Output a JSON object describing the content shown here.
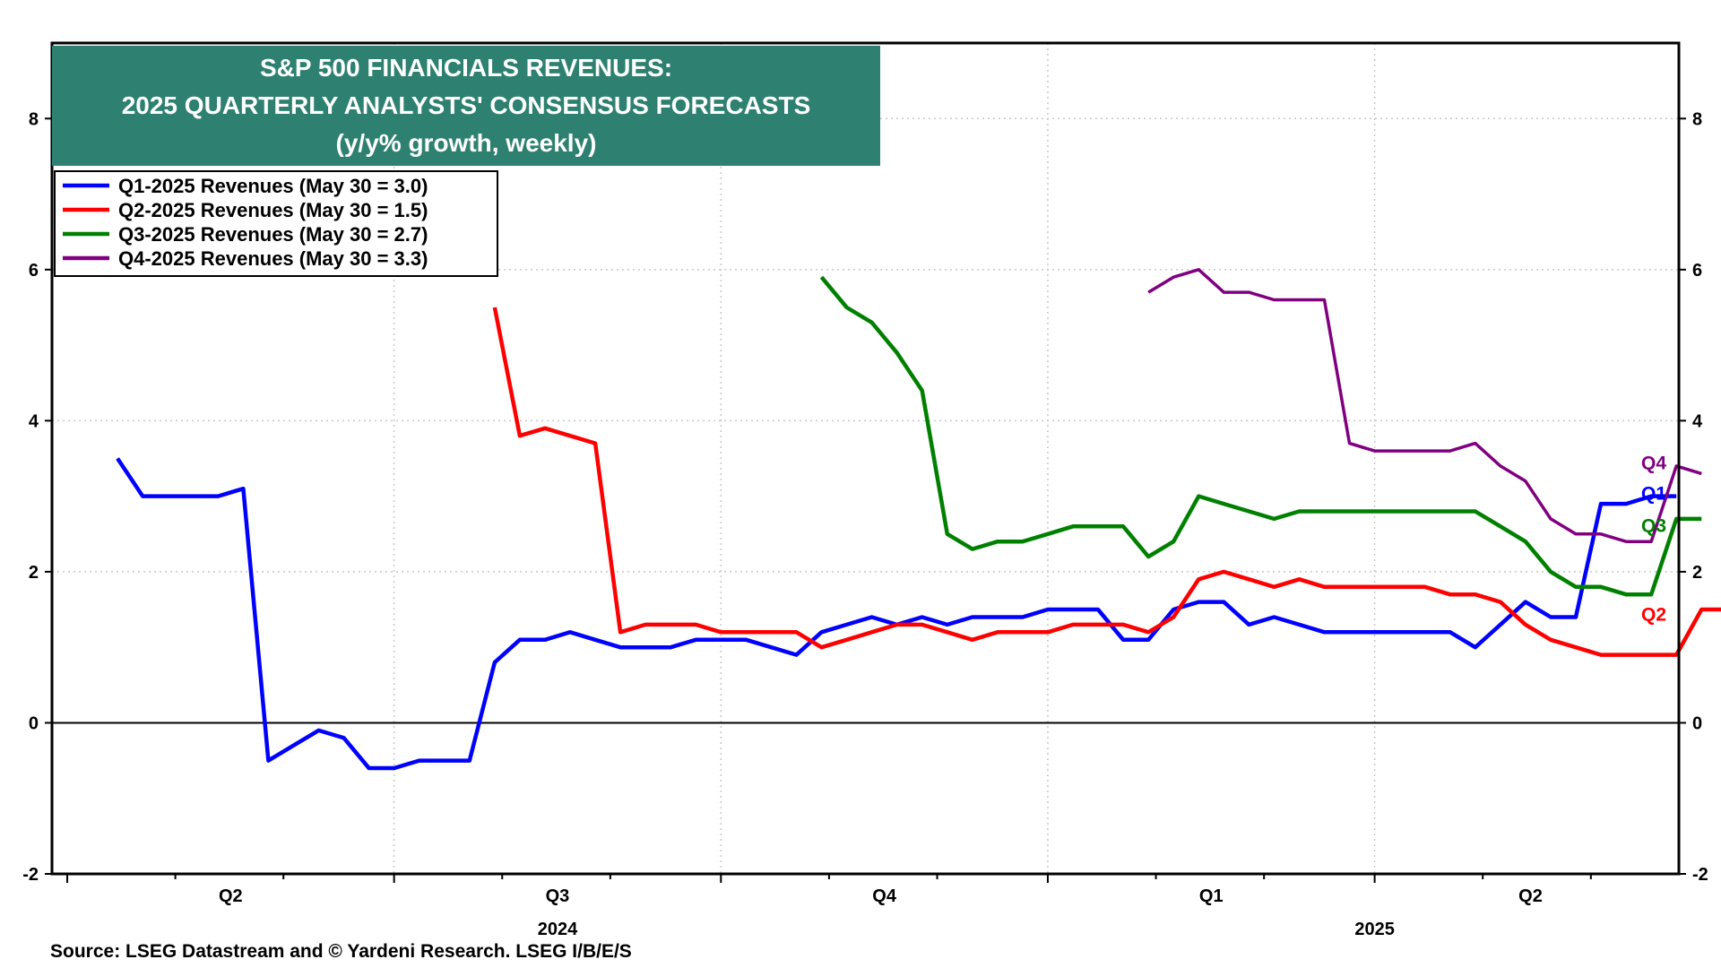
{
  "chart_data": {
    "type": "line",
    "title_lines": [
      "S&P 500 FINANCIALS REVENUES:",
      "2025 QUARTERLY ANALYSTS' CONSENSUS FORECASTS",
      "(y/y% growth, weekly)"
    ],
    "ylim": [
      -2,
      9
    ],
    "y_ticks": [
      -2,
      0,
      2,
      4,
      6,
      8
    ],
    "grid": true,
    "legend_position": "top-left",
    "x_quarter_labels": [
      {
        "label": "Q2",
        "week": 6.5
      },
      {
        "label": "Q3",
        "week": 19.5
      },
      {
        "label": "Q4",
        "week": 32.5
      },
      {
        "label": "Q1",
        "week": 45.5
      },
      {
        "label": "Q2",
        "week": 58.2
      }
    ],
    "x_year_labels": [
      {
        "label": "2024",
        "week": 19.5
      },
      {
        "label": "2025",
        "week": 52
      }
    ],
    "series": [
      {
        "name": "Q1-2025 Revenues (May 30 = 3.0)",
        "end_label": "Q1",
        "color": "#0000ff",
        "start_week": 2,
        "values": [
          3.5,
          3.0,
          3.0,
          3.0,
          3.0,
          3.1,
          -0.5,
          -0.3,
          -0.1,
          -0.2,
          -0.6,
          -0.6,
          -0.5,
          -0.5,
          -0.5,
          0.8,
          1.1,
          1.1,
          1.2,
          1.1,
          1.0,
          1.0,
          1.0,
          1.1,
          1.1,
          1.1,
          1.0,
          0.9,
          1.2,
          1.3,
          1.4,
          1.3,
          1.4,
          1.3,
          1.4,
          1.4,
          1.4,
          1.5,
          1.5,
          1.5,
          1.1,
          1.1,
          1.5,
          1.6,
          1.6,
          1.3,
          1.4,
          1.3,
          1.2,
          1.2,
          1.2,
          1.2,
          1.2,
          1.2,
          1.0,
          1.3,
          1.6,
          1.4,
          1.4,
          2.9,
          2.9,
          3.0,
          3.0
        ]
      },
      {
        "name": "Q2-2025 Revenues (May 30 = 1.5)",
        "end_label": "Q2",
        "color": "#ff0000",
        "start_week": 17,
        "values": [
          5.5,
          3.8,
          3.9,
          3.8,
          3.7,
          1.2,
          1.3,
          1.3,
          1.3,
          1.2,
          1.2,
          1.2,
          1.2,
          1.0,
          1.1,
          1.2,
          1.3,
          1.3,
          1.2,
          1.1,
          1.2,
          1.2,
          1.2,
          1.3,
          1.3,
          1.3,
          1.2,
          1.4,
          1.9,
          2.0,
          1.9,
          1.8,
          1.9,
          1.8,
          1.8,
          1.8,
          1.8,
          1.8,
          1.7,
          1.7,
          1.6,
          1.3,
          1.1,
          1.0,
          0.9,
          0.9,
          0.9,
          0.9,
          1.5,
          1.5
        ]
      },
      {
        "name": "Q3-2025 Revenues (May 30 = 2.7)",
        "end_label": "Q3",
        "color": "#008000",
        "start_week": 30,
        "values": [
          5.9,
          5.5,
          5.3,
          4.9,
          4.4,
          2.5,
          2.3,
          2.4,
          2.4,
          2.5,
          2.6,
          2.6,
          2.6,
          2.2,
          2.4,
          3.0,
          2.9,
          2.8,
          2.7,
          2.8,
          2.8,
          2.8,
          2.8,
          2.8,
          2.8,
          2.8,
          2.8,
          2.6,
          2.4,
          2.0,
          1.8,
          1.8,
          1.7,
          1.7,
          2.7,
          2.7
        ]
      },
      {
        "name": "Q4-2025 Revenues (May 30 = 3.3)",
        "end_label": "Q4",
        "color": "#800080",
        "start_week": 43,
        "values": [
          5.7,
          5.9,
          6.0,
          5.7,
          5.7,
          5.6,
          5.6,
          5.6,
          3.7,
          3.6,
          3.6,
          3.6,
          3.6,
          3.7,
          3.4,
          3.2,
          2.7,
          2.5,
          2.5,
          2.4,
          2.4,
          3.4,
          3.3
        ]
      }
    ]
  },
  "source": "Source: LSEG Datastream and © Yardeni Research. LSEG I/B/E/S"
}
